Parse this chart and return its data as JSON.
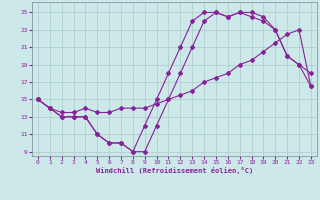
{
  "xlabel": "Windchill (Refroidissement éolien,°C)",
  "bg_color": "#cce8e8",
  "line_color": "#882299",
  "grid_color": "#aacccc",
  "line1_x": [
    0,
    1,
    2,
    3,
    4,
    5,
    6,
    7,
    8,
    9,
    10,
    11,
    12,
    13,
    14,
    15,
    16,
    17,
    18,
    19,
    20,
    21,
    22,
    23
  ],
  "line1_y": [
    15,
    14,
    13,
    13,
    13,
    11,
    10,
    10,
    9,
    9,
    12,
    15,
    18,
    21,
    24,
    25,
    24.5,
    25,
    25,
    24.5,
    23,
    20,
    19,
    18
  ],
  "line2_x": [
    0,
    1,
    2,
    3,
    4,
    5,
    6,
    7,
    8,
    9,
    10,
    11,
    12,
    13,
    14,
    15,
    16,
    17,
    18,
    19,
    20,
    21,
    22,
    23
  ],
  "line2_y": [
    15,
    14,
    13,
    13,
    13,
    11,
    10,
    10,
    9,
    12,
    15,
    18,
    21,
    24,
    25,
    25,
    24.5,
    25,
    24.5,
    24,
    23,
    20,
    19,
    16.5
  ],
  "line3_x": [
    0,
    1,
    2,
    3,
    4,
    5,
    6,
    7,
    8,
    9,
    10,
    11,
    12,
    13,
    14,
    15,
    16,
    17,
    18,
    19,
    20,
    21,
    22,
    23
  ],
  "line3_y": [
    15,
    14,
    13.5,
    13.5,
    14,
    13.5,
    13.5,
    14,
    14,
    14,
    14.5,
    15,
    15.5,
    16,
    17,
    17.5,
    18,
    19,
    19.5,
    20.5,
    21.5,
    22.5,
    23,
    16.5
  ],
  "xlim": [
    -0.5,
    23.5
  ],
  "ylim": [
    8.5,
    26.2
  ],
  "yticks": [
    9,
    11,
    13,
    15,
    17,
    19,
    21,
    23,
    25
  ],
  "xticks": [
    0,
    1,
    2,
    3,
    4,
    5,
    6,
    7,
    8,
    9,
    10,
    11,
    12,
    13,
    14,
    15,
    16,
    17,
    18,
    19,
    20,
    21,
    22,
    23
  ]
}
